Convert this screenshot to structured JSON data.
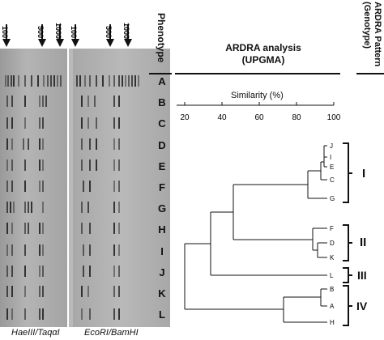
{
  "markers": {
    "left": [
      "100",
      "500",
      "1000"
    ],
    "right": [
      "100",
      "500",
      "1000"
    ]
  },
  "captions": {
    "left_enzymes": "HaeIII/TaqαI",
    "right_enzymes": "EcoRI/BamHI"
  },
  "headers": {
    "phenotype": "Phenotype",
    "analysis_line1": "ARDRA analysis",
    "analysis_line2": "(UPGMA)",
    "pattern": "ARDRA Pattern (Genotype)"
  },
  "rows": [
    "A",
    "B",
    "C",
    "D",
    "E",
    "F",
    "G",
    "H",
    "I",
    "J",
    "K",
    "L"
  ],
  "similarity_axis": {
    "label": "Similarity (%)",
    "ticks": [
      "20",
      "40",
      "60",
      "80",
      "100"
    ]
  },
  "leaves": [
    "J",
    "I",
    "E",
    "C",
    "G",
    "F",
    "D",
    "K",
    "L",
    "B",
    "A",
    "H"
  ],
  "groups": [
    "I",
    "II",
    "III",
    "IV"
  ],
  "colors": {
    "gel_dark": "#8a8a8a",
    "band": "#1a1a1a",
    "text": "#111111"
  }
}
